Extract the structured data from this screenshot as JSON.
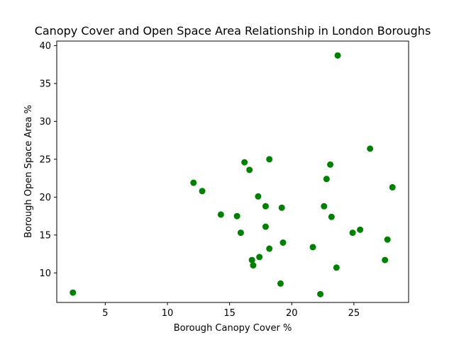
{
  "chart_data": {
    "type": "scatter",
    "title": "Canopy Cover and Open Space Area Relationship in London Boroughs",
    "xlabel": "Borough Canopy Cover %",
    "ylabel": "Borough Open Space Area %",
    "xlim": [
      1.1,
      29.4
    ],
    "ylim": [
      6.1,
      40.6
    ],
    "xticks": [
      5,
      10,
      15,
      20,
      25
    ],
    "yticks": [
      10,
      15,
      20,
      25,
      30,
      35,
      40
    ],
    "marker_color": "#008000",
    "grid": false,
    "points": [
      {
        "x": 2.4,
        "y": 7.4
      },
      {
        "x": 12.1,
        "y": 21.9
      },
      {
        "x": 12.8,
        "y": 20.8
      },
      {
        "x": 14.3,
        "y": 17.7
      },
      {
        "x": 15.6,
        "y": 17.5
      },
      {
        "x": 15.9,
        "y": 15.3
      },
      {
        "x": 16.2,
        "y": 24.6
      },
      {
        "x": 16.6,
        "y": 23.6
      },
      {
        "x": 16.8,
        "y": 11.7
      },
      {
        "x": 16.9,
        "y": 11.0
      },
      {
        "x": 17.3,
        "y": 20.1
      },
      {
        "x": 17.4,
        "y": 12.1
      },
      {
        "x": 17.9,
        "y": 18.8
      },
      {
        "x": 17.9,
        "y": 16.1
      },
      {
        "x": 18.2,
        "y": 25.0
      },
      {
        "x": 18.2,
        "y": 13.2
      },
      {
        "x": 19.1,
        "y": 8.6
      },
      {
        "x": 19.2,
        "y": 18.6
      },
      {
        "x": 19.3,
        "y": 14.0
      },
      {
        "x": 21.7,
        "y": 13.4
      },
      {
        "x": 22.3,
        "y": 7.2
      },
      {
        "x": 22.6,
        "y": 18.8
      },
      {
        "x": 22.8,
        "y": 22.4
      },
      {
        "x": 23.1,
        "y": 24.3
      },
      {
        "x": 23.2,
        "y": 17.4
      },
      {
        "x": 23.6,
        "y": 10.7
      },
      {
        "x": 23.7,
        "y": 38.7
      },
      {
        "x": 24.9,
        "y": 15.3
      },
      {
        "x": 25.5,
        "y": 15.7
      },
      {
        "x": 26.3,
        "y": 26.4
      },
      {
        "x": 27.5,
        "y": 11.7
      },
      {
        "x": 27.7,
        "y": 14.4
      },
      {
        "x": 28.1,
        "y": 21.3
      }
    ]
  }
}
